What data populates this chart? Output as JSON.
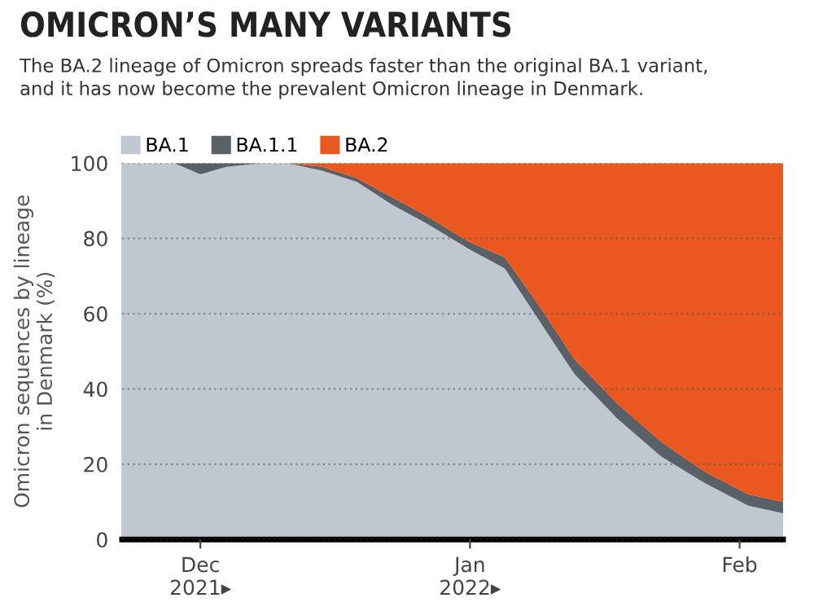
{
  "chart_data": {
    "type": "area",
    "stacked": true,
    "title": "OMICRON’S MANY VARIANTS",
    "subtitle": "The BA.2 lineage of Omicron spreads faster than the original BA.1 variant,\nand it has now become the prevalent Omicron lineage in Denmark.",
    "ylabel": "Omicron sequences by lineage\nin Denmark (%)",
    "x": [
      "2021-11-22",
      "2021-11-28",
      "2021-12-01",
      "2021-12-04",
      "2021-12-08",
      "2021-12-11",
      "2021-12-15",
      "2021-12-19",
      "2021-12-23",
      "2021-12-27",
      "2022-01-01",
      "2022-01-05",
      "2022-01-09",
      "2022-01-13",
      "2022-01-18",
      "2022-01-23",
      "2022-01-28",
      "2022-02-02",
      "2022-02-06"
    ],
    "series": [
      {
        "name": "BA.1",
        "color": "#bfc7d1",
        "values": [
          100,
          100,
          97,
          99,
          100,
          100,
          98,
          95,
          89,
          84,
          77,
          72,
          58,
          44,
          32,
          22,
          15,
          9,
          7
        ]
      },
      {
        "name": "BA.1.1",
        "color": "#5a6068",
        "values": [
          0,
          0,
          3,
          1,
          0,
          0,
          1,
          1,
          2,
          2,
          2,
          3,
          4,
          4,
          4,
          4,
          3,
          3,
          3
        ]
      },
      {
        "name": "BA.2",
        "color": "#e8581f",
        "values": [
          0,
          0,
          0,
          0,
          0,
          0,
          1,
          4,
          9,
          14,
          21,
          25,
          38,
          52,
          64,
          74,
          82,
          88,
          90
        ]
      }
    ],
    "xlim": [
      "2021-11-22",
      "2022-02-06"
    ],
    "xticks": [
      {
        "value": "2021-12-01",
        "label": "Dec\n2021▸"
      },
      {
        "value": "2022-01-01",
        "label": "Jan\n2022▸"
      },
      {
        "value": "2022-02-01",
        "label": "Feb"
      }
    ],
    "ylim": [
      0,
      100
    ],
    "yticks": [
      0,
      20,
      40,
      60,
      80,
      100
    ],
    "grid": "y",
    "legend": "top left"
  }
}
